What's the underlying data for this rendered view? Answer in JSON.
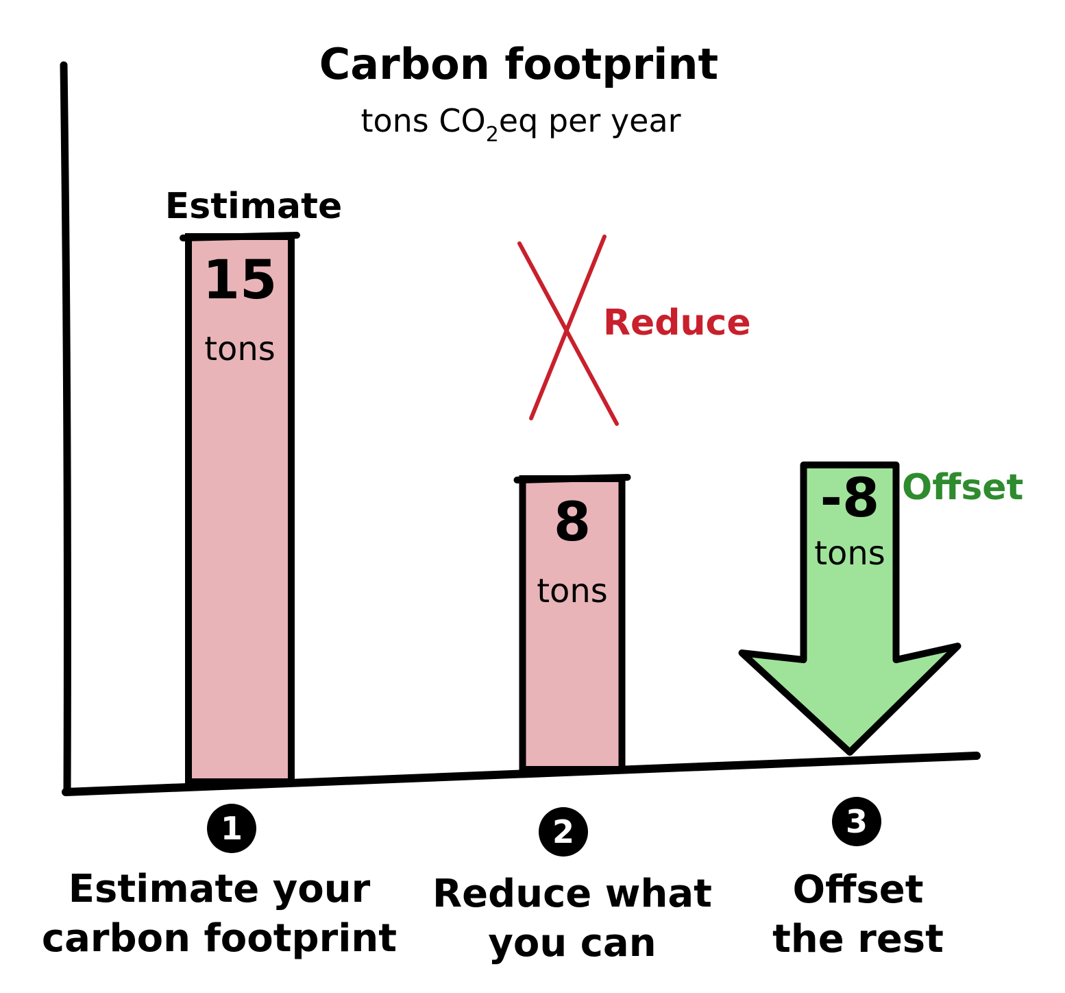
{
  "chart_data": {
    "type": "bar",
    "title": "Carbon footprint",
    "subtitle": {
      "prefix": "tons CO",
      "subscript": "2",
      "suffix": "eq per year"
    },
    "unit": "tons",
    "categories": [
      "1",
      "2",
      "3"
    ],
    "values": [
      15,
      8,
      -8
    ],
    "value_labels": [
      "15",
      "8",
      "-8"
    ],
    "bar_labels": [
      "Estimate",
      "Reduce",
      "Offset"
    ],
    "captions": [
      [
        "Estimate your",
        "carbon footprint"
      ],
      [
        "Reduce what",
        "you can"
      ],
      [
        "Offset",
        "the rest"
      ]
    ],
    "colors": {
      "positive_fill": "#e8b4b8",
      "offset_fill": "#9fe39a",
      "reduce_text": "#c8202c",
      "offset_text": "#2e8b2e",
      "cross": "#c8202c",
      "badge": "#000000"
    },
    "ylim": [
      0,
      15
    ]
  }
}
